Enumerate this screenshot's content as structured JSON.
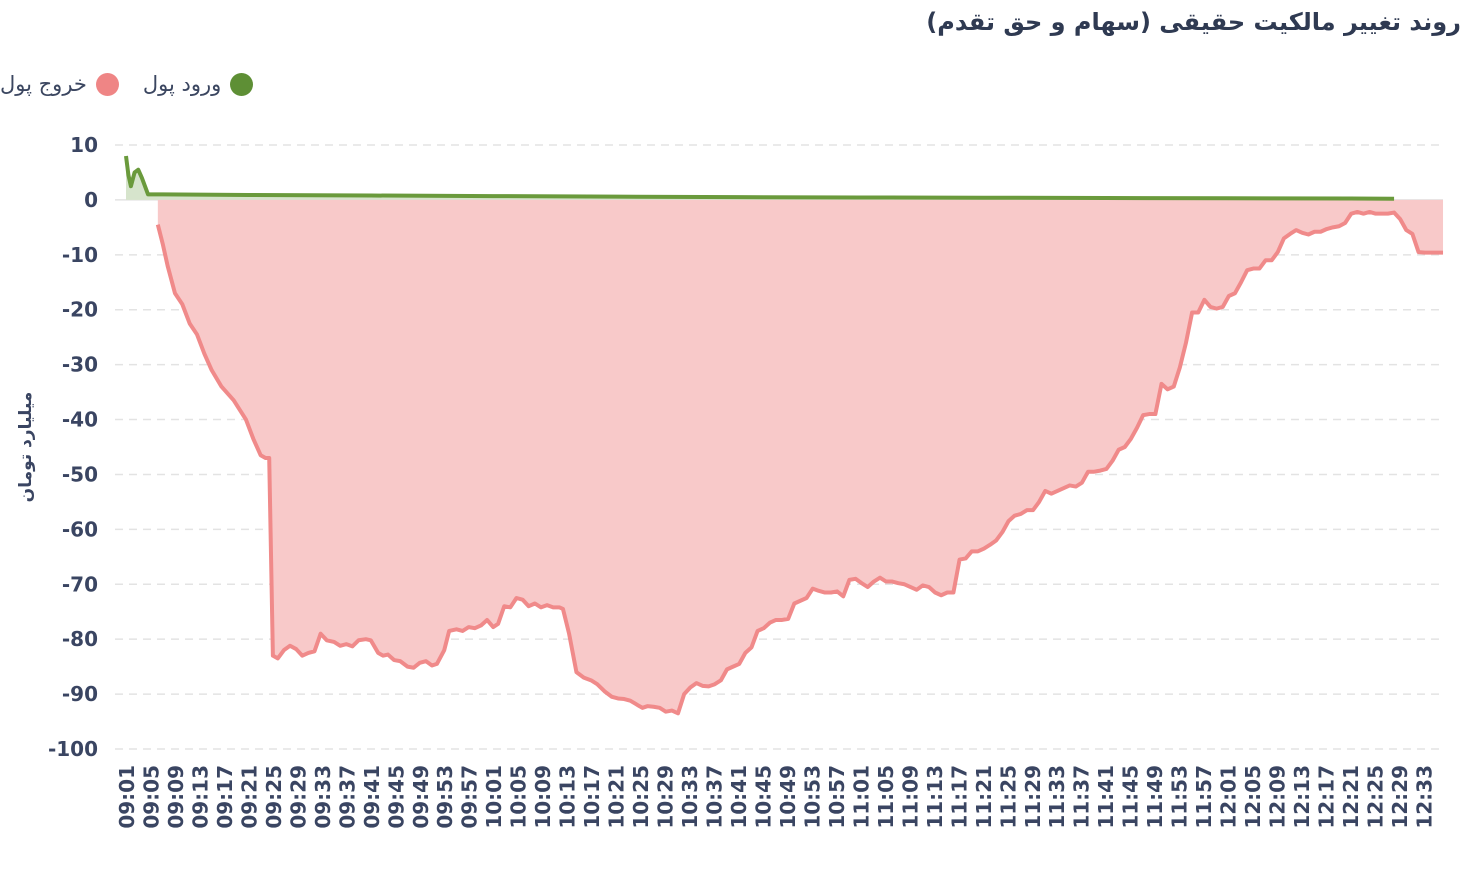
{
  "chart_data": {
    "type": "area",
    "title": "روند تغییر مالکیت حقیقی (سهام و حق تقدم)",
    "ylabel": "میلیارد تومان",
    "xlabel": "",
    "ylim": [
      -100,
      10
    ],
    "yticks": [
      10,
      0,
      -10,
      -20,
      -30,
      -40,
      -50,
      -60,
      -70,
      -80,
      -90,
      -100
    ],
    "grid": true,
    "legend_position": "top-left",
    "x": [
      "09:01",
      "09:05",
      "09:09",
      "09:13",
      "09:17",
      "09:21",
      "09:25",
      "09:29",
      "09:33",
      "09:37",
      "09:41",
      "09:45",
      "09:49",
      "09:53",
      "09:57",
      "10:01",
      "10:05",
      "10:09",
      "10:13",
      "10:17",
      "10:21",
      "10:25",
      "10:29",
      "10:33",
      "10:37",
      "10:41",
      "10:45",
      "10:49",
      "10:53",
      "10:57",
      "11:01",
      "11:05",
      "11:09",
      "11:13",
      "11:17",
      "11:21",
      "11:25",
      "11:29",
      "11:33",
      "11:37",
      "11:41",
      "11:45",
      "11:49",
      "11:53",
      "11:57",
      "12:01",
      "12:05",
      "12:09",
      "12:13",
      "12:17",
      "12:21",
      "12:25",
      "12:29",
      "12:33"
    ],
    "series": [
      {
        "name": "ورود پول",
        "color": "#6a9a3c",
        "fill": "#d6e4cc",
        "values": [
          [
            0.0,
            8
          ],
          [
            0.1,
            4.5
          ],
          [
            0.2,
            2.5
          ],
          [
            0.35,
            5
          ],
          [
            0.5,
            5.5
          ],
          [
            0.65,
            4
          ],
          [
            0.8,
            2.2
          ],
          [
            0.9,
            1.0
          ],
          [
            1.5,
            1.0
          ],
          [
            5,
            0.9
          ],
          [
            10,
            0.8
          ],
          [
            15,
            0.7
          ],
          [
            20,
            0.6
          ],
          [
            25,
            0.5
          ],
          [
            30,
            0.45
          ],
          [
            35,
            0.4
          ],
          [
            40,
            0.35
          ],
          [
            45,
            0.3
          ],
          [
            50,
            0.25
          ],
          [
            51.8,
            0.2
          ]
        ]
      },
      {
        "name": "خروج پول",
        "color": "#f08a8a",
        "fill": "#f8c9c9",
        "values": [
          [
            1.3,
            -4.5
          ],
          [
            1.5,
            -8
          ],
          [
            1.7,
            -12
          ],
          [
            2.0,
            -17
          ],
          [
            2.3,
            -19
          ],
          [
            2.6,
            -22.5
          ],
          [
            2.9,
            -24.5
          ],
          [
            3.2,
            -28
          ],
          [
            3.5,
            -31
          ],
          [
            3.9,
            -34
          ],
          [
            4.4,
            -36.5
          ],
          [
            4.9,
            -40
          ],
          [
            5.2,
            -43.5
          ],
          [
            5.5,
            -46.5
          ],
          [
            5.7,
            -47
          ],
          [
            5.85,
            -47
          ],
          [
            6.0,
            -83
          ],
          [
            6.2,
            -83.5
          ],
          [
            6.45,
            -82
          ],
          [
            6.7,
            -81.2
          ],
          [
            6.95,
            -81.8
          ],
          [
            7.2,
            -83
          ],
          [
            7.45,
            -82.5
          ],
          [
            7.7,
            -82.2
          ],
          [
            7.95,
            -79
          ],
          [
            8.2,
            -80.2
          ],
          [
            8.5,
            -80.5
          ],
          [
            8.75,
            -81.2
          ],
          [
            9.0,
            -80.9
          ],
          [
            9.25,
            -81.3
          ],
          [
            9.5,
            -80.2
          ],
          [
            9.8,
            -80.0
          ],
          [
            10.0,
            -80.2
          ],
          [
            10.3,
            -82.5
          ],
          [
            10.5,
            -83
          ],
          [
            10.7,
            -82.8
          ],
          [
            10.95,
            -83.8
          ],
          [
            11.2,
            -84
          ],
          [
            11.5,
            -85
          ],
          [
            11.75,
            -85.2
          ],
          [
            12.0,
            -84.3
          ],
          [
            12.25,
            -84
          ],
          [
            12.5,
            -84.8
          ],
          [
            12.7,
            -84.5
          ],
          [
            13.0,
            -82
          ],
          [
            13.2,
            -78.5
          ],
          [
            13.5,
            -78.2
          ],
          [
            13.75,
            -78.5
          ],
          [
            14.0,
            -77.8
          ],
          [
            14.25,
            -78
          ],
          [
            14.5,
            -77.5
          ],
          [
            14.75,
            -76.5
          ],
          [
            15.0,
            -77.8
          ],
          [
            15.2,
            -77.2
          ],
          [
            15.45,
            -74
          ],
          [
            15.7,
            -74.2
          ],
          [
            15.95,
            -72.5
          ],
          [
            16.2,
            -72.8
          ],
          [
            16.45,
            -74
          ],
          [
            16.7,
            -73.5
          ],
          [
            16.95,
            -74.2
          ],
          [
            17.2,
            -73.8
          ],
          [
            17.45,
            -74.2
          ],
          [
            17.7,
            -74.2
          ],
          [
            17.85,
            -74.5
          ],
          [
            18.1,
            -79
          ],
          [
            18.4,
            -86
          ],
          [
            18.7,
            -87
          ],
          [
            19.0,
            -87.5
          ],
          [
            19.25,
            -88.2
          ],
          [
            19.55,
            -89.5
          ],
          [
            19.85,
            -90.5
          ],
          [
            20.1,
            -90.8
          ],
          [
            20.35,
            -90.9
          ],
          [
            20.6,
            -91.2
          ],
          [
            20.9,
            -92
          ],
          [
            21.1,
            -92.5
          ],
          [
            21.3,
            -92.2
          ],
          [
            21.55,
            -92.3
          ],
          [
            21.8,
            -92.5
          ],
          [
            22.05,
            -93.2
          ],
          [
            22.3,
            -93
          ],
          [
            22.55,
            -93.5
          ],
          [
            22.8,
            -90
          ],
          [
            23.05,
            -88.8
          ],
          [
            23.3,
            -88
          ],
          [
            23.55,
            -88.5
          ],
          [
            23.8,
            -88.6
          ],
          [
            24.05,
            -88.2
          ],
          [
            24.3,
            -87.5
          ],
          [
            24.55,
            -85.5
          ],
          [
            24.8,
            -85
          ],
          [
            25.05,
            -84.5
          ],
          [
            25.3,
            -82.5
          ],
          [
            25.55,
            -81.5
          ],
          [
            25.8,
            -78.5
          ],
          [
            26.05,
            -78
          ],
          [
            26.3,
            -77
          ],
          [
            26.55,
            -76.5
          ],
          [
            26.8,
            -76.5
          ],
          [
            27.05,
            -76.3
          ],
          [
            27.3,
            -73.5
          ],
          [
            27.55,
            -73
          ],
          [
            27.8,
            -72.5
          ],
          [
            28.05,
            -70.8
          ],
          [
            28.3,
            -71.2
          ],
          [
            28.55,
            -71.5
          ],
          [
            28.8,
            -71.5
          ],
          [
            29.05,
            -71.3
          ],
          [
            29.3,
            -72.2
          ],
          [
            29.55,
            -69.2
          ],
          [
            29.8,
            -69
          ],
          [
            30.05,
            -69.8
          ],
          [
            30.3,
            -70.5
          ],
          [
            30.55,
            -69.5
          ],
          [
            30.8,
            -68.8
          ],
          [
            31.05,
            -69.5
          ],
          [
            31.3,
            -69.5
          ],
          [
            31.55,
            -69.8
          ],
          [
            31.8,
            -70
          ],
          [
            32.05,
            -70.5
          ],
          [
            32.3,
            -71
          ],
          [
            32.55,
            -70.2
          ],
          [
            32.8,
            -70.5
          ],
          [
            33.05,
            -71.5
          ],
          [
            33.3,
            -72
          ],
          [
            33.55,
            -71.5
          ],
          [
            33.8,
            -71.5
          ],
          [
            34.05,
            -65.5
          ],
          [
            34.3,
            -65.3
          ],
          [
            34.55,
            -64
          ],
          [
            34.8,
            -64
          ],
          [
            35.05,
            -63.5
          ],
          [
            35.3,
            -62.8
          ],
          [
            35.55,
            -62
          ],
          [
            35.8,
            -60.5
          ],
          [
            36.05,
            -58.5
          ],
          [
            36.3,
            -57.5
          ],
          [
            36.55,
            -57.2
          ],
          [
            36.8,
            -56.5
          ],
          [
            37.05,
            -56.5
          ],
          [
            37.3,
            -55
          ],
          [
            37.55,
            -53
          ],
          [
            37.8,
            -53.5
          ],
          [
            38.05,
            -53
          ],
          [
            38.3,
            -52.5
          ],
          [
            38.55,
            -52
          ],
          [
            38.8,
            -52.2
          ],
          [
            39.05,
            -51.5
          ],
          [
            39.3,
            -49.5
          ],
          [
            39.55,
            -49.5
          ],
          [
            39.8,
            -49.3
          ],
          [
            40.05,
            -49
          ],
          [
            40.3,
            -47.5
          ],
          [
            40.55,
            -45.5
          ],
          [
            40.8,
            -45
          ],
          [
            41.05,
            -43.5
          ],
          [
            41.3,
            -41.5
          ],
          [
            41.55,
            -39.2
          ],
          [
            41.8,
            -39
          ],
          [
            42.05,
            -39
          ],
          [
            42.3,
            -33.5
          ],
          [
            42.55,
            -34.5
          ],
          [
            42.8,
            -34
          ],
          [
            43.05,
            -30.5
          ],
          [
            43.3,
            -26
          ],
          [
            43.55,
            -20.5
          ],
          [
            43.8,
            -20.5
          ],
          [
            44.05,
            -18.2
          ],
          [
            44.3,
            -19.5
          ],
          [
            44.55,
            -19.8
          ],
          [
            44.8,
            -19.5
          ],
          [
            45.05,
            -17.5
          ],
          [
            45.3,
            -17
          ],
          [
            45.55,
            -15
          ],
          [
            45.8,
            -12.8
          ],
          [
            46.05,
            -12.5
          ],
          [
            46.3,
            -12.5
          ],
          [
            46.55,
            -11
          ],
          [
            46.8,
            -11
          ],
          [
            47.05,
            -9.5
          ],
          [
            47.3,
            -7
          ],
          [
            47.55,
            -6.2
          ],
          [
            47.8,
            -5.5
          ],
          [
            48.05,
            -6
          ],
          [
            48.3,
            -6.3
          ],
          [
            48.55,
            -5.8
          ],
          [
            48.8,
            -5.8
          ],
          [
            49.05,
            -5.3
          ],
          [
            49.3,
            -5
          ],
          [
            49.55,
            -4.8
          ],
          [
            49.8,
            -4.2
          ],
          [
            50.05,
            -2.5
          ],
          [
            50.3,
            -2.2
          ],
          [
            50.55,
            -2.5
          ],
          [
            50.8,
            -2.2
          ],
          [
            51.05,
            -2.5
          ],
          [
            51.3,
            -2.5
          ],
          [
            51.55,
            -2.5
          ],
          [
            51.8,
            -2.3
          ],
          [
            52.05,
            -3.5
          ],
          [
            52.3,
            -5.5
          ],
          [
            52.55,
            -6.2
          ],
          [
            52.8,
            -9.5
          ],
          [
            53.05,
            -9.6
          ],
          [
            53.3,
            -9.6
          ],
          [
            53.55,
            -9.6
          ],
          [
            53.8,
            -9.6
          ]
        ]
      }
    ]
  }
}
